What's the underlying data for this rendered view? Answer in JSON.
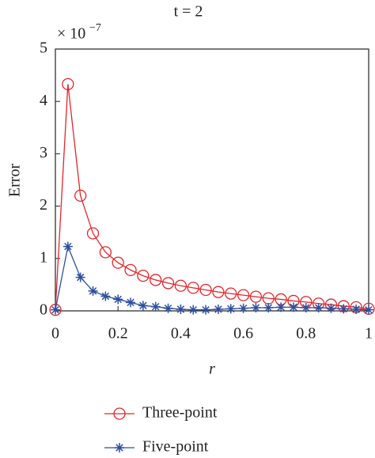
{
  "chart_data": {
    "type": "line",
    "title": "t = 2",
    "x_label": "r",
    "y_label": "Error",
    "multiplier": "× 10",
    "multiplier_exponent": "−7",
    "x": [
      0,
      0.04,
      0.08,
      0.12,
      0.16,
      0.2,
      0.24,
      0.28,
      0.32,
      0.36,
      0.4,
      0.44,
      0.48,
      0.52,
      0.56,
      0.6,
      0.64,
      0.68,
      0.72,
      0.76,
      0.8,
      0.84,
      0.88,
      0.92,
      0.96,
      1
    ],
    "series": [
      {
        "name": "Three-point",
        "color": "#e3262c",
        "marker": "circle",
        "values": [
          0.02,
          4.33,
          2.2,
          1.48,
          1.12,
          0.92,
          0.78,
          0.67,
          0.59,
          0.53,
          0.48,
          0.44,
          0.4,
          0.36,
          0.33,
          0.3,
          0.27,
          0.24,
          0.22,
          0.19,
          0.17,
          0.14,
          0.12,
          0.09,
          0.07,
          0.04
        ]
      },
      {
        "name": "Five-point",
        "color": "#2d4fa0",
        "marker": "star",
        "values": [
          0.02,
          1.23,
          0.64,
          0.38,
          0.28,
          0.22,
          0.16,
          0.1,
          0.08,
          0.05,
          0.03,
          0.02,
          0.02,
          0.03,
          0.04,
          0.05,
          0.06,
          0.06,
          0.07,
          0.07,
          0.06,
          0.06,
          0.05,
          0.04,
          0.03,
          0.02
        ]
      }
    ],
    "xlim": [
      0,
      1
    ],
    "ylim": [
      0,
      5
    ],
    "xticks": [
      0,
      0.2,
      0.4,
      0.6,
      0.8,
      1
    ],
    "yticks": [
      0,
      1,
      2,
      3,
      4,
      5
    ]
  }
}
